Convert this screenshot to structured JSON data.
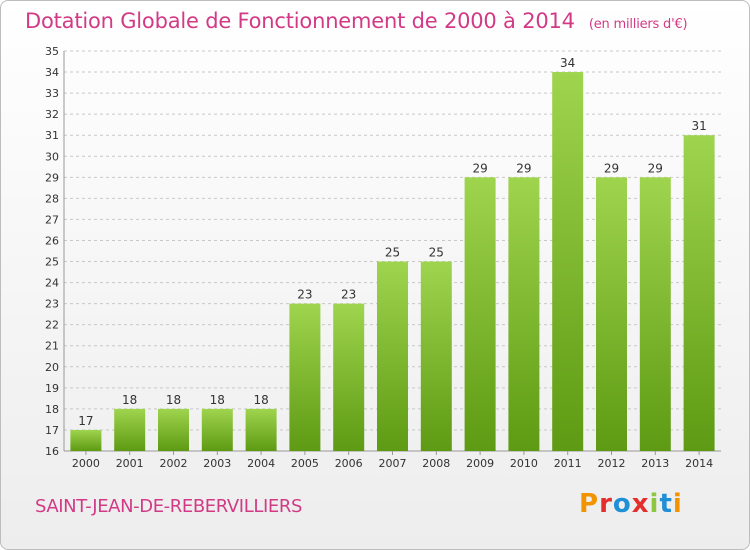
{
  "chart_title": "Dotation Globale de Fonctionnement de 2000 à 2014",
  "chart_subtitle": "(en milliers d'€)",
  "town_name": "SAINT-JEAN-DE-REBERVILLIERS",
  "logo_text": "Proxiti",
  "colors": {
    "title": "#d23a86",
    "bar_light": "#9fd44e",
    "bar_dark": "#5e9a13",
    "grid": "#c8c8c8",
    "logo_letters": [
      "#f29400",
      "#e52d2d",
      "#1f8fd6",
      "#e52d2d",
      "#8dc63f",
      "#1f8fd6",
      "#f29400"
    ]
  },
  "chart_data": {
    "type": "bar",
    "title": "Dotation Globale de Fonctionnement de 2000 à 2014",
    "subtitle": "(en milliers d'€)",
    "xlabel": "",
    "ylabel": "",
    "categories": [
      "2000",
      "2001",
      "2002",
      "2003",
      "2004",
      "2005",
      "2006",
      "2007",
      "2008",
      "2009",
      "2010",
      "2011",
      "2012",
      "2013",
      "2014"
    ],
    "values": [
      17,
      18,
      18,
      18,
      18,
      23,
      23,
      25,
      25,
      29,
      29,
      34,
      29,
      29,
      31
    ],
    "ylim": [
      16,
      35
    ],
    "yticks": [
      16,
      17,
      18,
      19,
      20,
      21,
      22,
      23,
      24,
      25,
      26,
      27,
      28,
      29,
      30,
      31,
      32,
      33,
      34,
      35
    ],
    "grid": "horizontal dashed",
    "legend": "none"
  }
}
